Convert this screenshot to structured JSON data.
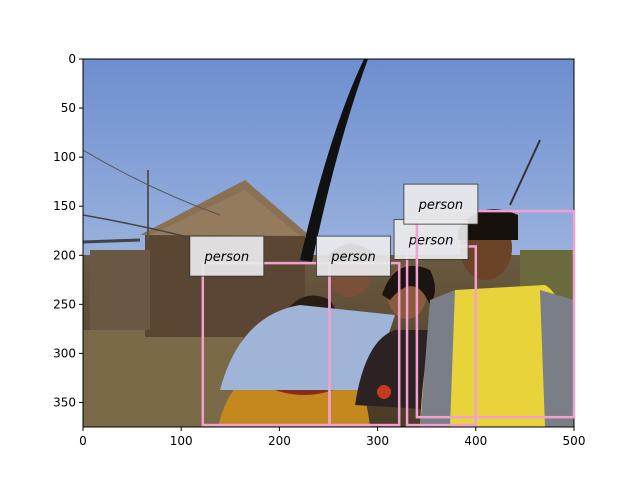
{
  "image": {
    "description_colors": {
      "sky_top": "#6e8fcf",
      "sky_bottom": "#b9c9e6",
      "ground": "#5b4a33"
    }
  },
  "axes": {
    "x_ticks": [
      "0",
      "100",
      "200",
      "300",
      "400",
      "500"
    ],
    "y_ticks": [
      "0",
      "50",
      "100",
      "150",
      "200",
      "250",
      "300",
      "350"
    ],
    "xlim": [
      0,
      500
    ],
    "ylim": [
      375,
      0
    ]
  },
  "detections": [
    {
      "label": "person",
      "x0": 122,
      "y0": 208,
      "x1": 251,
      "y1": 373
    },
    {
      "label": "person",
      "x0": 251,
      "y0": 208,
      "x1": 322,
      "y1": 373
    },
    {
      "label": "person",
      "x0": 330,
      "y0": 191,
      "x1": 400,
      "y1": 373
    },
    {
      "label": "person",
      "x0": 340,
      "y0": 155,
      "x1": 500,
      "y1": 365
    }
  ],
  "box_color": "#f2a0d0"
}
